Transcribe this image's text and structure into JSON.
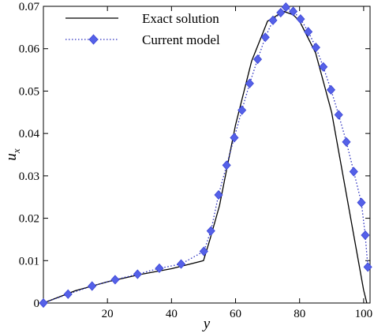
{
  "chart_data": {
    "type": "line",
    "xlabel": "y",
    "ylabel_main": "u",
    "ylabel_sub": "x",
    "xlim": [
      0,
      102
    ],
    "ylim": [
      0,
      0.07
    ],
    "xticks": [
      20,
      40,
      60,
      80,
      100
    ],
    "xtick_labels": [
      "20",
      "40",
      "60",
      "80",
      "100"
    ],
    "yticks": [
      0,
      0.01,
      0.02,
      0.03,
      0.04,
      0.05,
      0.06,
      0.07
    ],
    "ytick_labels": [
      "0",
      "0.01",
      "0.02",
      "0.03",
      "0.04",
      "0.05",
      "0.06",
      "0.07"
    ],
    "grid": false,
    "legend_position": "top-left",
    "series": [
      {
        "name": "Exact solution",
        "style": "solid",
        "color": "#000000",
        "x": [
          0,
          10,
          20,
          30,
          40,
          50,
          52,
          55,
          60,
          65,
          70,
          75,
          78,
          80,
          85,
          90,
          95,
          100,
          101
        ],
        "y": [
          0,
          0.0029,
          0.005,
          0.0067,
          0.0081,
          0.01,
          0.015,
          0.023,
          0.042,
          0.057,
          0.0665,
          0.0688,
          0.068,
          0.0665,
          0.059,
          0.045,
          0.024,
          0.003,
          0.0
        ]
      },
      {
        "name": "Current model",
        "style": "dotted",
        "color": "#2a2fbf",
        "marker": "diamond",
        "marker_color": "#5561e8",
        "x": [
          0,
          7.7,
          15.2,
          22.4,
          29.4,
          36.2,
          43,
          50.1,
          52.3,
          54.7,
          57.2,
          59.6,
          62,
          64.4,
          66.9,
          69.3,
          71.7,
          74.1,
          75.7,
          78,
          80.3,
          82.7,
          85.1,
          87.4,
          89.8,
          92.2,
          94.6,
          96.9,
          99.3,
          100.5,
          101.3
        ],
        "y": [
          0,
          0.0021,
          0.004,
          0.0055,
          0.0068,
          0.0082,
          0.0092,
          0.0122,
          0.017,
          0.0255,
          0.0325,
          0.039,
          0.0455,
          0.0518,
          0.0575,
          0.0627,
          0.0667,
          0.0685,
          0.0698,
          0.0688,
          0.067,
          0.064,
          0.0603,
          0.0557,
          0.0503,
          0.0444,
          0.038,
          0.031,
          0.0237,
          0.016,
          0.0085
        ]
      }
    ]
  }
}
